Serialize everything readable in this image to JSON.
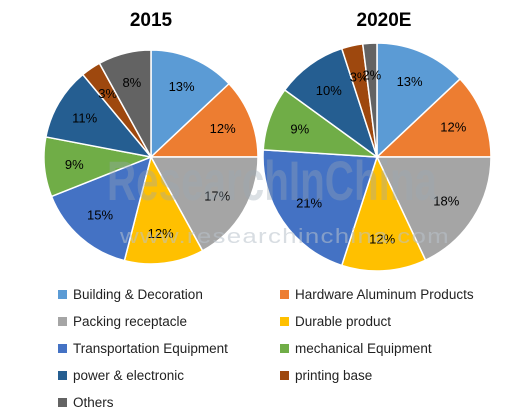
{
  "chart_data": [
    {
      "type": "pie",
      "title": "2015",
      "categories": [
        "Building & Decoration",
        "Hardware Aluminum Products",
        "Packing receptacle",
        "Durable product",
        "Transportation Equipment",
        "mechanical Equipment",
        "power & electronic",
        "printing base",
        "Others"
      ],
      "values": [
        13,
        12,
        17,
        12,
        15,
        9,
        11,
        3,
        8
      ],
      "labels": [
        "13%",
        "12%",
        "17%",
        "12%",
        "15%",
        "9%",
        "11%",
        "3%",
        "8%"
      ]
    },
    {
      "type": "pie",
      "title": "2020E",
      "categories": [
        "Building & Decoration",
        "Hardware Aluminum Products",
        "Packing receptacle",
        "Durable product",
        "Transportation Equipment",
        "mechanical Equipment",
        "power & electronic",
        "printing base",
        "Others"
      ],
      "values": [
        13,
        12,
        18,
        12,
        21,
        9,
        10,
        3,
        2
      ],
      "labels": [
        "13%",
        "12%",
        "18%",
        "12%",
        "21%",
        "9%",
        "10%",
        "3%",
        "2%"
      ]
    }
  ],
  "legend": {
    "placement": "bottom",
    "rows": [
      [
        {
          "label": "Building & Decoration",
          "color": "#5b9bd5"
        },
        {
          "label": "Hardware Aluminum Products",
          "color": "#ed7d31"
        }
      ],
      [
        {
          "label": "Packing receptacle",
          "color": "#a5a5a5"
        },
        {
          "label": "Durable product",
          "color": "#ffc000"
        }
      ],
      [
        {
          "label": "Transportation Equipment",
          "color": "#4472c4"
        },
        {
          "label": "mechanical Equipment",
          "color": "#70ad47"
        }
      ],
      [
        {
          "label": "power & electronic",
          "color": "#255e91"
        },
        {
          "label": "printing base",
          "color": "#9e480e"
        }
      ],
      [
        {
          "label": "Others",
          "color": "#636363"
        }
      ]
    ]
  },
  "colors": [
    "#5b9bd5",
    "#ed7d31",
    "#a5a5a5",
    "#ffc000",
    "#4472c4",
    "#70ad47",
    "#255e91",
    "#9e480e",
    "#636363"
  ],
  "watermark": {
    "main": "ResearchInChina",
    "url": "www.researchinchina.com"
  }
}
